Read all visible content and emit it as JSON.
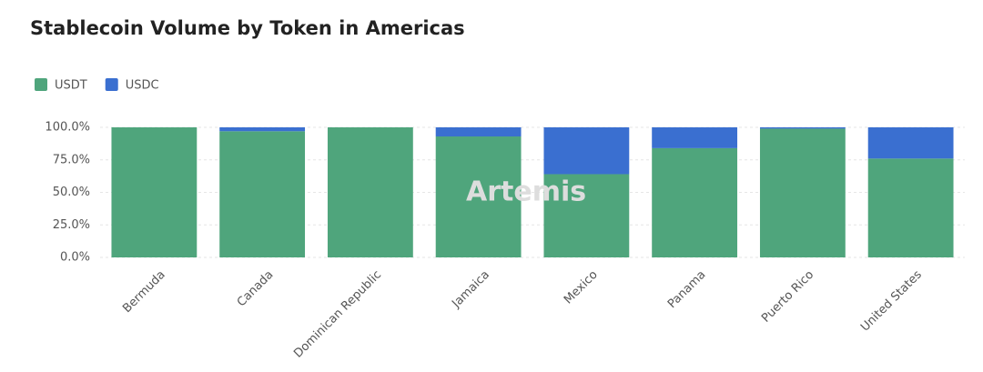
{
  "chart_data": {
    "type": "stacked_bar",
    "title": "Stablecoin Volume by Token in Americas",
    "watermark": "Artemis",
    "categories": [
      "Bermuda",
      "Canada",
      "Dominican Republic",
      "Jamaica",
      "Mexico",
      "Panama",
      "Puerto Rico",
      "United States"
    ],
    "series": [
      {
        "name": "USDT",
        "color": "#4fa57c",
        "values": [
          100,
          97,
          100,
          93,
          64,
          84,
          99,
          76
        ]
      },
      {
        "name": "USDC",
        "color": "#3a6fd0",
        "values": [
          0,
          3,
          0,
          7,
          36,
          16,
          1,
          24
        ]
      }
    ],
    "ylim": [
      0,
      100
    ],
    "yticks": [
      {
        "value": 0,
        "label": "0.0%"
      },
      {
        "value": 25,
        "label": "25.0%"
      },
      {
        "value": 50,
        "label": "50.0%"
      },
      {
        "value": 75,
        "label": "75.0%"
      },
      {
        "value": 100,
        "label": "100.0%"
      }
    ],
    "grid": true
  }
}
